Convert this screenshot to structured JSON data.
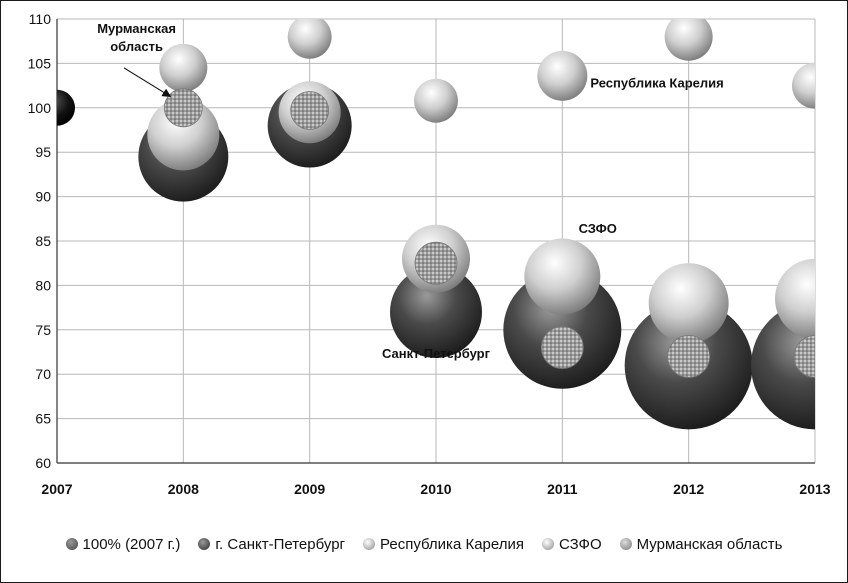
{
  "chart_data": {
    "type": "bubble",
    "x": [
      2007,
      2008,
      2009,
      2010,
      2011,
      2012,
      2013
    ],
    "xlim": [
      2007,
      2013
    ],
    "ylim": [
      60,
      110
    ],
    "yticks": [
      60,
      65,
      70,
      75,
      80,
      85,
      90,
      95,
      100,
      105,
      110
    ],
    "grid": true,
    "legend_position": "bottom",
    "series": [
      {
        "name": "100% (2007 г.)",
        "color": "#7a7a7a",
        "style": "base",
        "points": [
          {
            "x": 2007,
            "y": 100,
            "size": 18
          }
        ]
      },
      {
        "name": "г. Санкт-Петербург",
        "color": "#3d3d3d",
        "style": "dark",
        "points": [
          {
            "x": 2008,
            "y": 94.5,
            "size": 45
          },
          {
            "x": 2009,
            "y": 98,
            "size": 42
          },
          {
            "x": 2010,
            "y": 77,
            "size": 46
          },
          {
            "x": 2011,
            "y": 75,
            "size": 59
          },
          {
            "x": 2012,
            "y": 71,
            "size": 64
          },
          {
            "x": 2013,
            "y": 71,
            "size": 64
          }
        ]
      },
      {
        "name": "Республика Карелия",
        "color": "#a8a8a8",
        "style": "light",
        "points": [
          {
            "x": 2008,
            "y": 104.5,
            "size": 24
          },
          {
            "x": 2009,
            "y": 108,
            "size": 22
          },
          {
            "x": 2010,
            "y": 100.8,
            "size": 22
          },
          {
            "x": 2011,
            "y": 103.6,
            "size": 25
          },
          {
            "x": 2012,
            "y": 108,
            "size": 24
          },
          {
            "x": 2013,
            "y": 102.5,
            "size": 23
          }
        ]
      },
      {
        "name": "СЗФО",
        "color": "#bdbdbd",
        "style": "light",
        "points": [
          {
            "x": 2008,
            "y": 97,
            "size": 36
          },
          {
            "x": 2009,
            "y": 99.5,
            "size": 31
          },
          {
            "x": 2010,
            "y": 83,
            "size": 34
          },
          {
            "x": 2011,
            "y": 81,
            "size": 38
          },
          {
            "x": 2012,
            "y": 78,
            "size": 40
          },
          {
            "x": 2013,
            "y": 78.5,
            "size": 40
          }
        ]
      },
      {
        "name": "Мурманская область",
        "color": "#909090",
        "style": "speckled",
        "points": [
          {
            "x": 2008,
            "y": 100,
            "size": 19
          },
          {
            "x": 2009,
            "y": 99.7,
            "size": 19
          },
          {
            "x": 2010,
            "y": 82.5,
            "size": 21
          },
          {
            "x": 2011,
            "y": 73,
            "size": 21
          },
          {
            "x": 2012,
            "y": 72,
            "size": 21
          },
          {
            "x": 2013,
            "y": 72,
            "size": 21
          }
        ]
      }
    ],
    "annotations": [
      {
        "text": "Мурманская",
        "x": 2007.63,
        "y": 108.4
      },
      {
        "text": "область",
        "x": 2007.63,
        "y": 106.4
      },
      {
        "text": "Республика Карелия",
        "x": 2011.75,
        "y": 102.3
      },
      {
        "text": "СЗФО",
        "x": 2011.28,
        "y": 85.9
      },
      {
        "text": "Санкт-Петербург",
        "x": 2010.0,
        "y": 71.8
      }
    ]
  }
}
